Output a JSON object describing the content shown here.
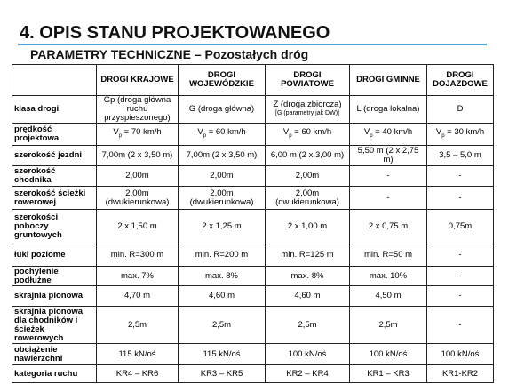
{
  "header": {
    "title": "4. OPIS STANU PROJEKTOWANEGO",
    "subtitle": "PARAMETRY TECHNICZNE – Pozostałych dróg"
  },
  "table": {
    "columns": [
      "DROGI KRAJOWE",
      "DROGI WOJEWÓDZKIE",
      "DROGI POWIATOWE",
      "DROGI GMINNE",
      "DROGI DOJAZDOWE"
    ],
    "rows": [
      {
        "label": "klasa drogi",
        "cells": [
          "Gp (droga główna ruchu przyspieszonego)",
          "G (droga główna)",
          {
            "text": "Z (droga zbiorcza)",
            "note": "[G (parametry jak DW)]"
          },
          "L (droga lokalna)",
          "D"
        ]
      },
      {
        "label": "prędkość projektowa",
        "cells": [
          {
            "v": "V",
            "sub": "p",
            "rest": " = 70 km/h"
          },
          {
            "v": "V",
            "sub": "p",
            "rest": " = 60 km/h"
          },
          {
            "v": "V",
            "sub": "p",
            "rest": " = 60 km/h"
          },
          {
            "v": "V",
            "sub": "p",
            "rest": " = 40 km/h"
          },
          {
            "v": "V",
            "sub": "p",
            "rest": " = 30 km/h"
          }
        ]
      },
      {
        "label": "szerokość jezdni",
        "cells": [
          "7,00m (2 x 3,50 m)",
          "7,00m (2 x 3,50 m)",
          "6,00 m (2 x 3,00 m)",
          "5,50 m (2 x 2,75 m)",
          "3,5 – 5,0 m"
        ]
      },
      {
        "label": "szerokość chodnika",
        "cells": [
          "2,00m",
          "2,00m",
          "2,00m",
          "-",
          "-"
        ]
      },
      {
        "label": "szerokość ścieżki rowerowej",
        "cells": [
          "2,00m (dwukierunkowa)",
          "2,00m (dwukierunkowa)",
          "2,00m (dwukierunkowa)",
          "-",
          "-"
        ]
      },
      {
        "label": "szerokości poboczy gruntowych",
        "cells": [
          "2 x 1,50 m",
          "2 x 1,25 m",
          "2 x 1,00 m",
          "2 x 0,75 m",
          "0,75m"
        ]
      },
      {
        "label": "łuki poziome",
        "cells": [
          "min. R=300 m",
          "min. R=200 m",
          "min. R=125 m",
          "min. R=50 m",
          "-"
        ]
      },
      {
        "label": "pochylenie podłużne",
        "cells": [
          "max. 7%",
          "max. 8%",
          "max. 8%",
          "max. 10%",
          "-"
        ]
      },
      {
        "label": "skrajnia pionowa",
        "cells": [
          "4,70 m",
          "4,60 m",
          "4,60 m",
          "4,50 m",
          "-"
        ]
      },
      {
        "label": "skrajnia pionowa dla chodników i ścieżek rowerowych",
        "cells": [
          "2,5m",
          "2,5m",
          "2,5m",
          "2,5m",
          "-"
        ]
      },
      {
        "label": "obciążenie nawierzchni",
        "cells": [
          "115 kN/oś",
          "115 kN/oś",
          "100 kN/oś",
          "100 kN/oś",
          "100 kN/oś"
        ]
      },
      {
        "label": "kategoria ruchu",
        "cells": [
          "KR4 – KR6",
          "KR3 – KR5",
          "KR2 – KR4",
          "KR1 – KR3",
          "KR1-KR2"
        ]
      }
    ]
  }
}
